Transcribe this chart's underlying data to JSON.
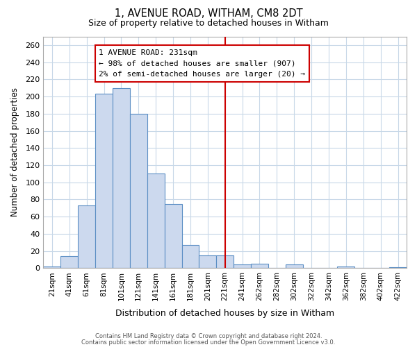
{
  "title": "1, AVENUE ROAD, WITHAM, CM8 2DT",
  "subtitle": "Size of property relative to detached houses in Witham",
  "xlabel": "Distribution of detached houses by size in Witham",
  "ylabel": "Number of detached properties",
  "bar_labels": [
    "21sqm",
    "41sqm",
    "61sqm",
    "81sqm",
    "101sqm",
    "121sqm",
    "141sqm",
    "161sqm",
    "181sqm",
    "201sqm",
    "221sqm",
    "241sqm",
    "262sqm",
    "282sqm",
    "302sqm",
    "322sqm",
    "342sqm",
    "362sqm",
    "382sqm",
    "402sqm",
    "422sqm"
  ],
  "bar_values": [
    2,
    14,
    73,
    203,
    210,
    180,
    110,
    75,
    27,
    15,
    15,
    4,
    5,
    0,
    4,
    0,
    0,
    2,
    0,
    0,
    1
  ],
  "bar_color": "#ccd9ee",
  "bar_edge_color": "#5b8ec4",
  "bar_width": 1.0,
  "ylim": [
    0,
    270
  ],
  "yticks": [
    0,
    20,
    40,
    60,
    80,
    100,
    120,
    140,
    160,
    180,
    200,
    220,
    240,
    260
  ],
  "vline_x": 10.5,
  "vline_color": "#cc0000",
  "annotation_title": "1 AVENUE ROAD: 231sqm",
  "annotation_line1": "← 98% of detached houses are smaller (907)",
  "annotation_line2": "2% of semi-detached houses are larger (20) →",
  "footer1": "Contains HM Land Registry data © Crown copyright and database right 2024.",
  "footer2": "Contains public sector information licensed under the Open Government Licence v3.0.",
  "background_color": "#ffffff",
  "plot_bg_color": "#ffffff",
  "grid_color": "#c8d8e8"
}
